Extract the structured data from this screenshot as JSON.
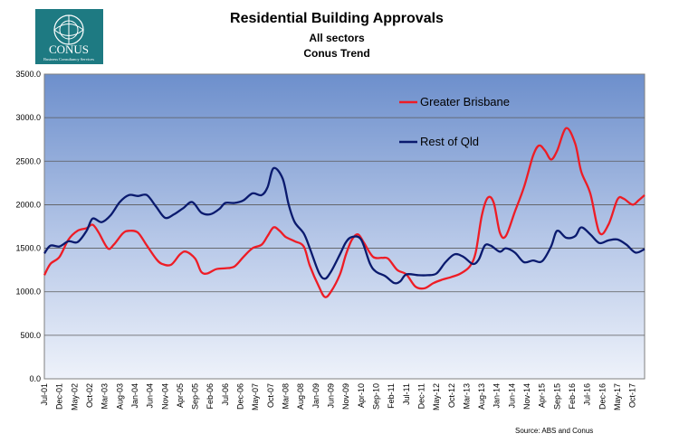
{
  "logo": {
    "name": "CONUS",
    "tagline": "Business Consultancy Services"
  },
  "source": "Source: ABS and Conus",
  "chart_data": {
    "type": "line",
    "title": "Residential Building Approvals",
    "subtitle_1": "All sectors",
    "subtitle_2": "Conus Trend",
    "ylim": [
      0,
      3500
    ],
    "y_ticks": [
      "0.0",
      "500.0",
      "1000.0",
      "1500.0",
      "2000.0",
      "2500.0",
      "3000.0",
      "3500.0"
    ],
    "x_tick_labels": [
      "Jul-01",
      "Dec-01",
      "May-02",
      "Oct-02",
      "Mar-03",
      "Aug-03",
      "Jan-04",
      "Jun-04",
      "Nov-04",
      "Apr-05",
      "Sep-05",
      "Feb-06",
      "Jul-06",
      "Dec-06",
      "May-07",
      "Oct-07",
      "Mar-08",
      "Aug-08",
      "Jan-09",
      "Jun-09",
      "Nov-09",
      "Apr-10",
      "Sep-10",
      "Feb-11",
      "Jul-11",
      "Dec-11",
      "May-12",
      "Oct-12",
      "Mar-13",
      "Aug-13",
      "Jan-14",
      "Jun-14",
      "Nov-14",
      "Apr-15",
      "Sep-15",
      "Feb-16",
      "Jul-16",
      "Dec-16",
      "May-17",
      "Oct-17"
    ],
    "grid": "horizontal",
    "legend_placement": "top-right, inside plot",
    "x_start": "2001-07",
    "x_end": "2018-02",
    "series": [
      {
        "name": "Greater Brisbane",
        "color": "#ee1c25",
        "points": [
          [
            "2001-07",
            1190
          ],
          [
            "2001-09",
            1320
          ],
          [
            "2001-12",
            1400
          ],
          [
            "2002-03",
            1600
          ],
          [
            "2002-06",
            1700
          ],
          [
            "2002-09",
            1730
          ],
          [
            "2002-11",
            1770
          ],
          [
            "2003-01",
            1680
          ],
          [
            "2003-04",
            1500
          ],
          [
            "2003-06",
            1540
          ],
          [
            "2003-09",
            1670
          ],
          [
            "2003-11",
            1700
          ],
          [
            "2004-02",
            1680
          ],
          [
            "2004-05",
            1530
          ],
          [
            "2004-08",
            1380
          ],
          [
            "2004-10",
            1320
          ],
          [
            "2005-01",
            1310
          ],
          [
            "2005-04",
            1430
          ],
          [
            "2005-06",
            1460
          ],
          [
            "2005-09",
            1380
          ],
          [
            "2005-11",
            1230
          ],
          [
            "2006-01",
            1210
          ],
          [
            "2006-04",
            1260
          ],
          [
            "2006-07",
            1270
          ],
          [
            "2006-10",
            1290
          ],
          [
            "2007-01",
            1400
          ],
          [
            "2007-04",
            1500
          ],
          [
            "2007-07",
            1540
          ],
          [
            "2007-09",
            1640
          ],
          [
            "2007-11",
            1740
          ],
          [
            "2008-01",
            1700
          ],
          [
            "2008-03",
            1630
          ],
          [
            "2008-06",
            1580
          ],
          [
            "2008-09",
            1520
          ],
          [
            "2008-11",
            1300
          ],
          [
            "2009-02",
            1060
          ],
          [
            "2009-04",
            940
          ],
          [
            "2009-06",
            1000
          ],
          [
            "2009-09",
            1200
          ],
          [
            "2009-11",
            1430
          ],
          [
            "2010-01",
            1600
          ],
          [
            "2010-03",
            1660
          ],
          [
            "2010-05",
            1560
          ],
          [
            "2010-08",
            1400
          ],
          [
            "2010-11",
            1390
          ],
          [
            "2011-01",
            1380
          ],
          [
            "2011-04",
            1250
          ],
          [
            "2011-07",
            1200
          ],
          [
            "2011-10",
            1060
          ],
          [
            "2012-01",
            1040
          ],
          [
            "2012-04",
            1100
          ],
          [
            "2012-07",
            1140
          ],
          [
            "2012-10",
            1170
          ],
          [
            "2013-01",
            1210
          ],
          [
            "2013-04",
            1290
          ],
          [
            "2013-06",
            1450
          ],
          [
            "2013-08",
            1870
          ],
          [
            "2013-10",
            2080
          ],
          [
            "2013-12",
            2020
          ],
          [
            "2014-02",
            1680
          ],
          [
            "2014-04",
            1640
          ],
          [
            "2014-07",
            1920
          ],
          [
            "2014-10",
            2200
          ],
          [
            "2015-01",
            2560
          ],
          [
            "2015-03",
            2680
          ],
          [
            "2015-05",
            2620
          ],
          [
            "2015-07",
            2520
          ],
          [
            "2015-09",
            2620
          ],
          [
            "2015-12",
            2880
          ],
          [
            "2016-03",
            2700
          ],
          [
            "2016-05",
            2380
          ],
          [
            "2016-08",
            2130
          ],
          [
            "2016-11",
            1680
          ],
          [
            "2017-02",
            1770
          ],
          [
            "2017-05",
            2060
          ],
          [
            "2017-07",
            2070
          ],
          [
            "2017-10",
            2000
          ],
          [
            "2017-12",
            2050
          ],
          [
            "2018-02",
            2110
          ]
        ]
      },
      {
        "name": "Rest of Qld",
        "color": "#0a1a6e",
        "points": [
          [
            "2001-07",
            1440
          ],
          [
            "2001-09",
            1530
          ],
          [
            "2001-12",
            1520
          ],
          [
            "2002-03",
            1580
          ],
          [
            "2002-06",
            1570
          ],
          [
            "2002-09",
            1700
          ],
          [
            "2002-11",
            1840
          ],
          [
            "2003-02",
            1800
          ],
          [
            "2003-05",
            1880
          ],
          [
            "2003-08",
            2030
          ],
          [
            "2003-11",
            2110
          ],
          [
            "2004-02",
            2100
          ],
          [
            "2004-05",
            2110
          ],
          [
            "2004-08",
            1980
          ],
          [
            "2004-11",
            1850
          ],
          [
            "2005-02",
            1890
          ],
          [
            "2005-05",
            1960
          ],
          [
            "2005-08",
            2030
          ],
          [
            "2005-11",
            1910
          ],
          [
            "2006-02",
            1890
          ],
          [
            "2006-05",
            1950
          ],
          [
            "2006-07",
            2020
          ],
          [
            "2006-10",
            2020
          ],
          [
            "2007-01",
            2050
          ],
          [
            "2007-04",
            2130
          ],
          [
            "2007-07",
            2110
          ],
          [
            "2007-09",
            2200
          ],
          [
            "2007-11",
            2420
          ],
          [
            "2008-02",
            2300
          ],
          [
            "2008-04",
            2000
          ],
          [
            "2008-06",
            1800
          ],
          [
            "2008-09",
            1670
          ],
          [
            "2008-11",
            1500
          ],
          [
            "2009-02",
            1220
          ],
          [
            "2009-04",
            1150
          ],
          [
            "2009-06",
            1230
          ],
          [
            "2009-09",
            1430
          ],
          [
            "2009-11",
            1570
          ],
          [
            "2010-01",
            1630
          ],
          [
            "2010-04",
            1600
          ],
          [
            "2010-07",
            1320
          ],
          [
            "2010-09",
            1230
          ],
          [
            "2010-12",
            1180
          ],
          [
            "2011-03",
            1100
          ],
          [
            "2011-05",
            1120
          ],
          [
            "2011-07",
            1200
          ],
          [
            "2011-11",
            1190
          ],
          [
            "2012-02",
            1190
          ],
          [
            "2012-05",
            1210
          ],
          [
            "2012-08",
            1340
          ],
          [
            "2012-11",
            1430
          ],
          [
            "2013-02",
            1400
          ],
          [
            "2013-05",
            1320
          ],
          [
            "2013-07",
            1370
          ],
          [
            "2013-09",
            1530
          ],
          [
            "2013-11",
            1530
          ],
          [
            "2014-02",
            1460
          ],
          [
            "2014-04",
            1500
          ],
          [
            "2014-07",
            1450
          ],
          [
            "2014-10",
            1340
          ],
          [
            "2015-01",
            1360
          ],
          [
            "2015-04",
            1350
          ],
          [
            "2015-07",
            1520
          ],
          [
            "2015-09",
            1700
          ],
          [
            "2015-12",
            1620
          ],
          [
            "2016-03",
            1640
          ],
          [
            "2016-05",
            1740
          ],
          [
            "2016-08",
            1660
          ],
          [
            "2016-11",
            1560
          ],
          [
            "2017-02",
            1590
          ],
          [
            "2017-05",
            1600
          ],
          [
            "2017-08",
            1540
          ],
          [
            "2017-11",
            1450
          ],
          [
            "2018-02",
            1490
          ]
        ]
      }
    ]
  }
}
